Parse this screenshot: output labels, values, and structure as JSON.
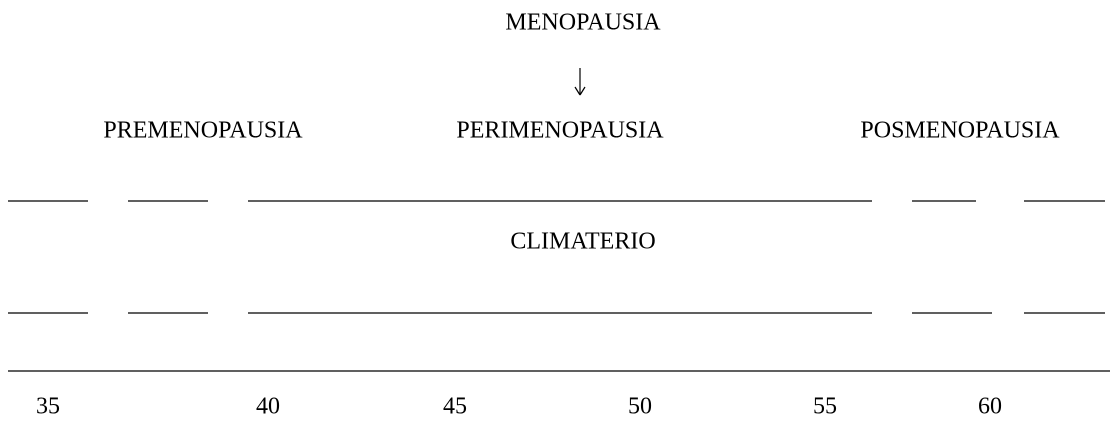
{
  "title": "MENOPAUSIA",
  "stages": [
    "PREMENOPAUSIA",
    "PERIMENOPAUSIA",
    "POSMENOPAUSIA"
  ],
  "period": "CLIMATERIO",
  "ages": [
    35,
    40,
    45,
    50,
    55,
    60
  ]
}
